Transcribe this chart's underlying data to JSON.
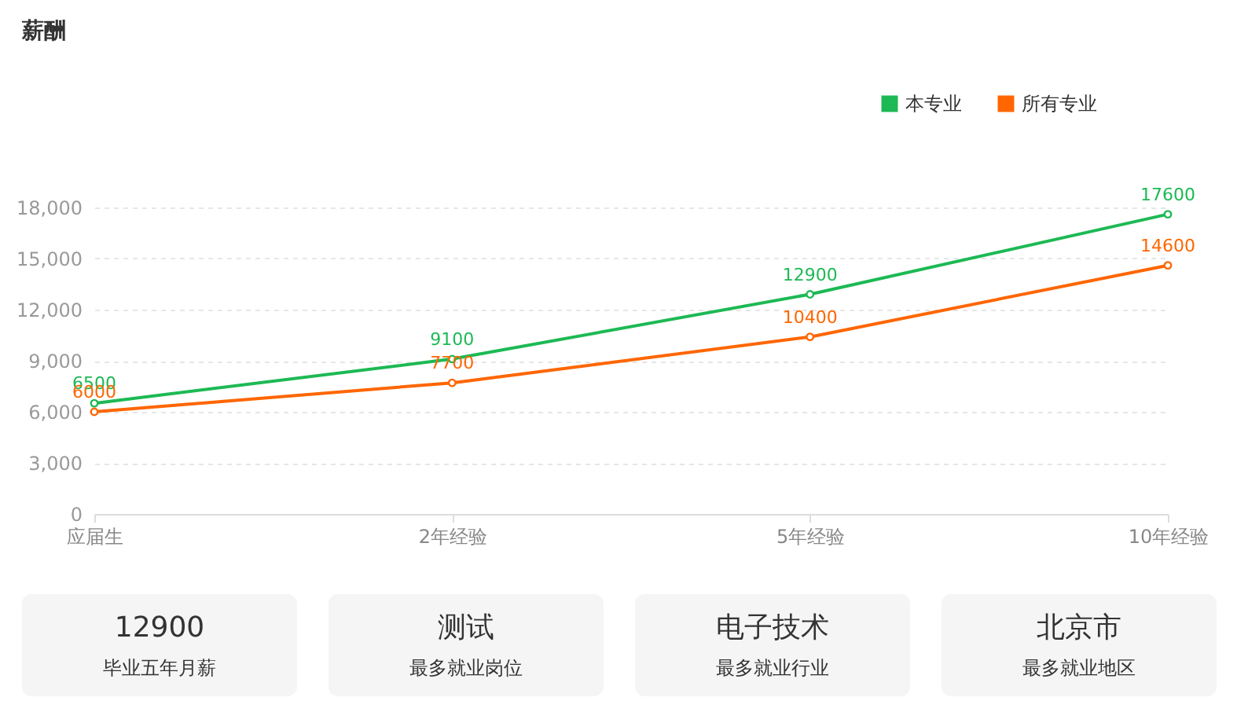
{
  "chart_data": [
    {
      "type": "line",
      "title": "薪酬",
      "categories": [
        "应届生",
        "2年经验",
        "5年经验",
        "10年经验"
      ],
      "series": [
        {
          "name": "本专业",
          "color": "#1db954",
          "values": [
            6500,
            9100,
            12900,
            17600
          ]
        },
        {
          "name": "所有专业",
          "color": "#ff6600",
          "values": [
            6000,
            7700,
            10400,
            14600
          ]
        }
      ],
      "ylim": [
        0,
        18000
      ],
      "yticks": [
        0,
        {
          "value": 3000,
          "label": "3,000"
        },
        {
          "value": 6000,
          "label": "6,000"
        },
        {
          "value": 9000,
          "label": "9,000"
        },
        {
          "value": 12000,
          "label": "12,000"
        },
        {
          "value": 15000,
          "label": "15,000"
        },
        {
          "value": 18000,
          "label": "18,000"
        }
      ],
      "grid": "y",
      "legend": "top right",
      "marker": "circle",
      "line_style": "solid",
      "data_labels": true
    },
    {
      "type": "other",
      "title": "12900",
      "subtitle": "毕业五年月薪"
    },
    {
      "type": "other",
      "title": "测试",
      "subtitle": "最多就业岗位"
    },
    {
      "type": "other",
      "title": "电子技术",
      "subtitle": "最多就业行业"
    },
    {
      "type": "other",
      "title": "北京市",
      "subtitle": "最多就业地区"
    }
  ]
}
